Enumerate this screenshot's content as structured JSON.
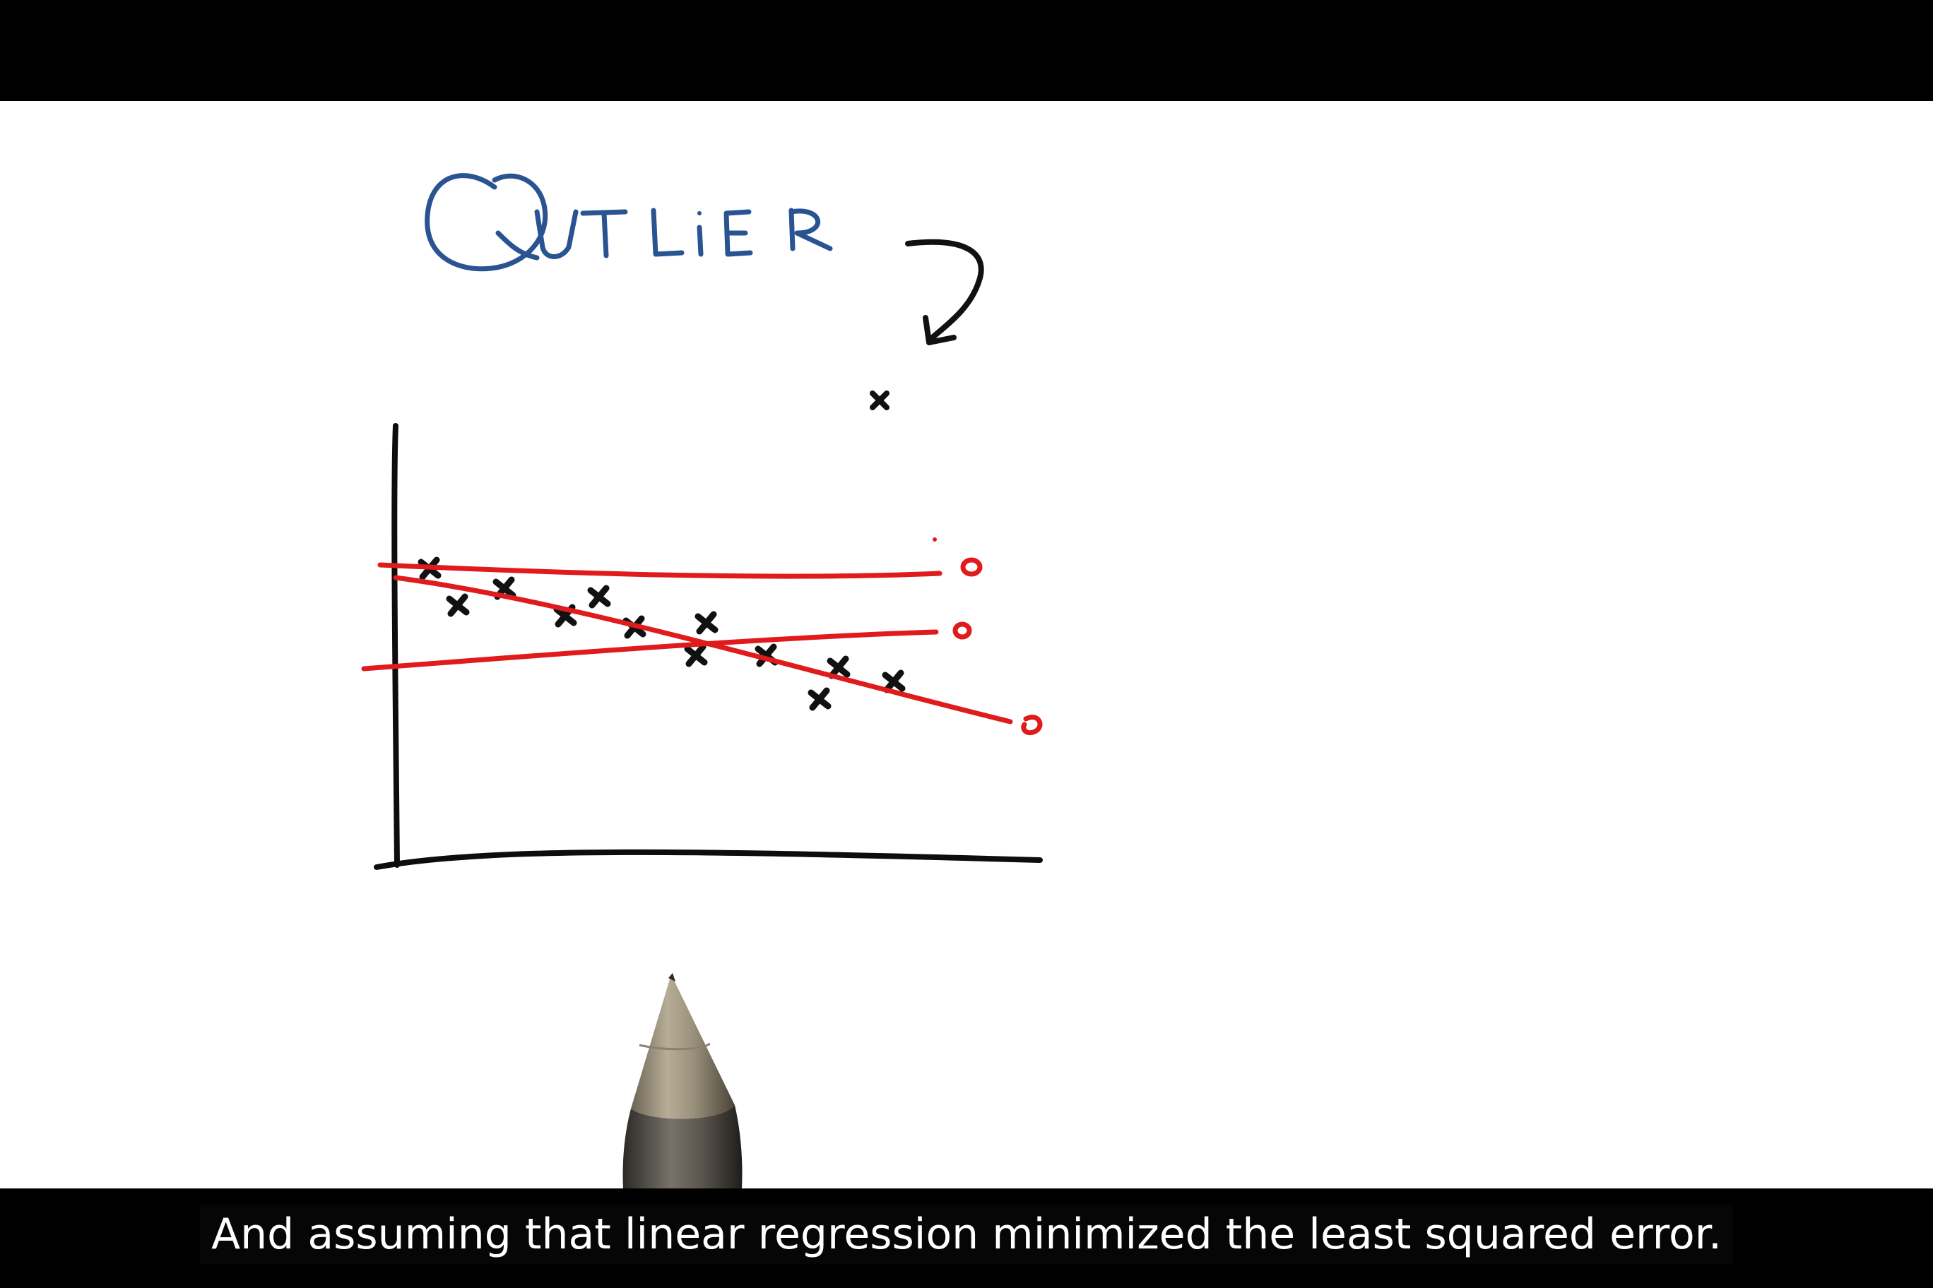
{
  "video": {
    "caption": "And assuming that linear regression minimized the least squared error."
  },
  "whiteboard": {
    "annotation_label": "OUTLIER",
    "colors": {
      "board": "#ffffff",
      "label_ink": "#2a5392",
      "marker_ink": "#111111",
      "fit_line_ink": "#e01b1b"
    },
    "objects": [
      "outlier-arrow-icon",
      "pen-icon"
    ]
  }
}
